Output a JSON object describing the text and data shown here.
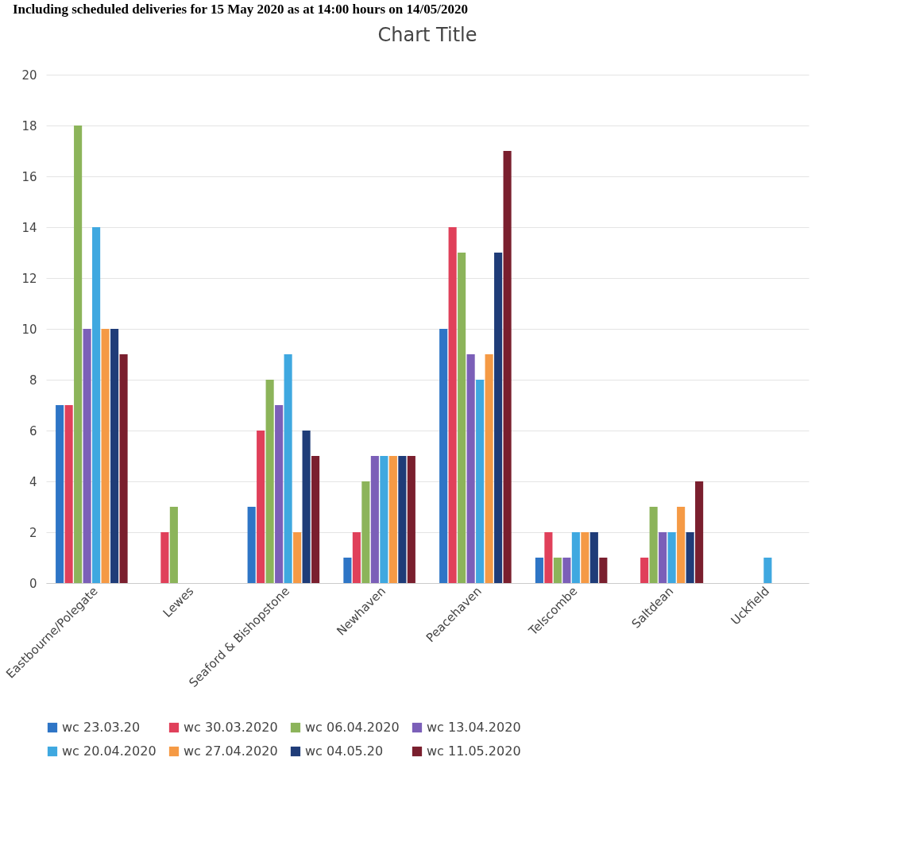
{
  "chart_data": {
    "type": "bar",
    "title": "Chart Title",
    "annotations": [
      "Including scheduled deliveries for 15 May 2020 as at 14:00 hours on 14/05/2020"
    ],
    "categories": [
      "Eastbourne/Polegate",
      "Lewes",
      "Seaford & Bishopstone",
      "Newhaven",
      "Peacehaven",
      "Telscombe",
      "Saltdean",
      "Uckfield"
    ],
    "series": [
      {
        "name": "wc 23.03.20",
        "color": "#2e75c6",
        "values": [
          7,
          0,
          3,
          1,
          10,
          1,
          0,
          0
        ]
      },
      {
        "name": "wc 30.03.2020",
        "color": "#e0405a",
        "values": [
          7,
          2,
          6,
          2,
          14,
          2,
          1,
          0
        ]
      },
      {
        "name": "wc 06.04.2020",
        "color": "#8cb45a",
        "values": [
          18,
          3,
          8,
          4,
          13,
          1,
          3,
          0
        ]
      },
      {
        "name": "wc 13.04.2020",
        "color": "#7b5fb8",
        "values": [
          10,
          0,
          7,
          5,
          9,
          1,
          2,
          0
        ]
      },
      {
        "name": "wc 20.04.2020",
        "color": "#3fa8e0",
        "values": [
          14,
          0,
          9,
          5,
          8,
          2,
          2,
          1
        ]
      },
      {
        "name": "wc 27.04.2020",
        "color": "#f59a45",
        "values": [
          10,
          0,
          2,
          5,
          9,
          2,
          3,
          0
        ]
      },
      {
        "name": "wc 04.05.20",
        "color": "#1f3c78",
        "values": [
          10,
          0,
          6,
          5,
          13,
          2,
          2,
          0
        ]
      },
      {
        "name": "wc 11.05.2020",
        "color": "#7a1f2e",
        "values": [
          9,
          0,
          5,
          5,
          17,
          1,
          4,
          0
        ]
      }
    ],
    "ylim": [
      0,
      20
    ],
    "yticks": [
      0,
      2,
      4,
      6,
      8,
      10,
      12,
      14,
      16,
      18,
      20
    ],
    "grid": "y",
    "legend": "bottom"
  }
}
